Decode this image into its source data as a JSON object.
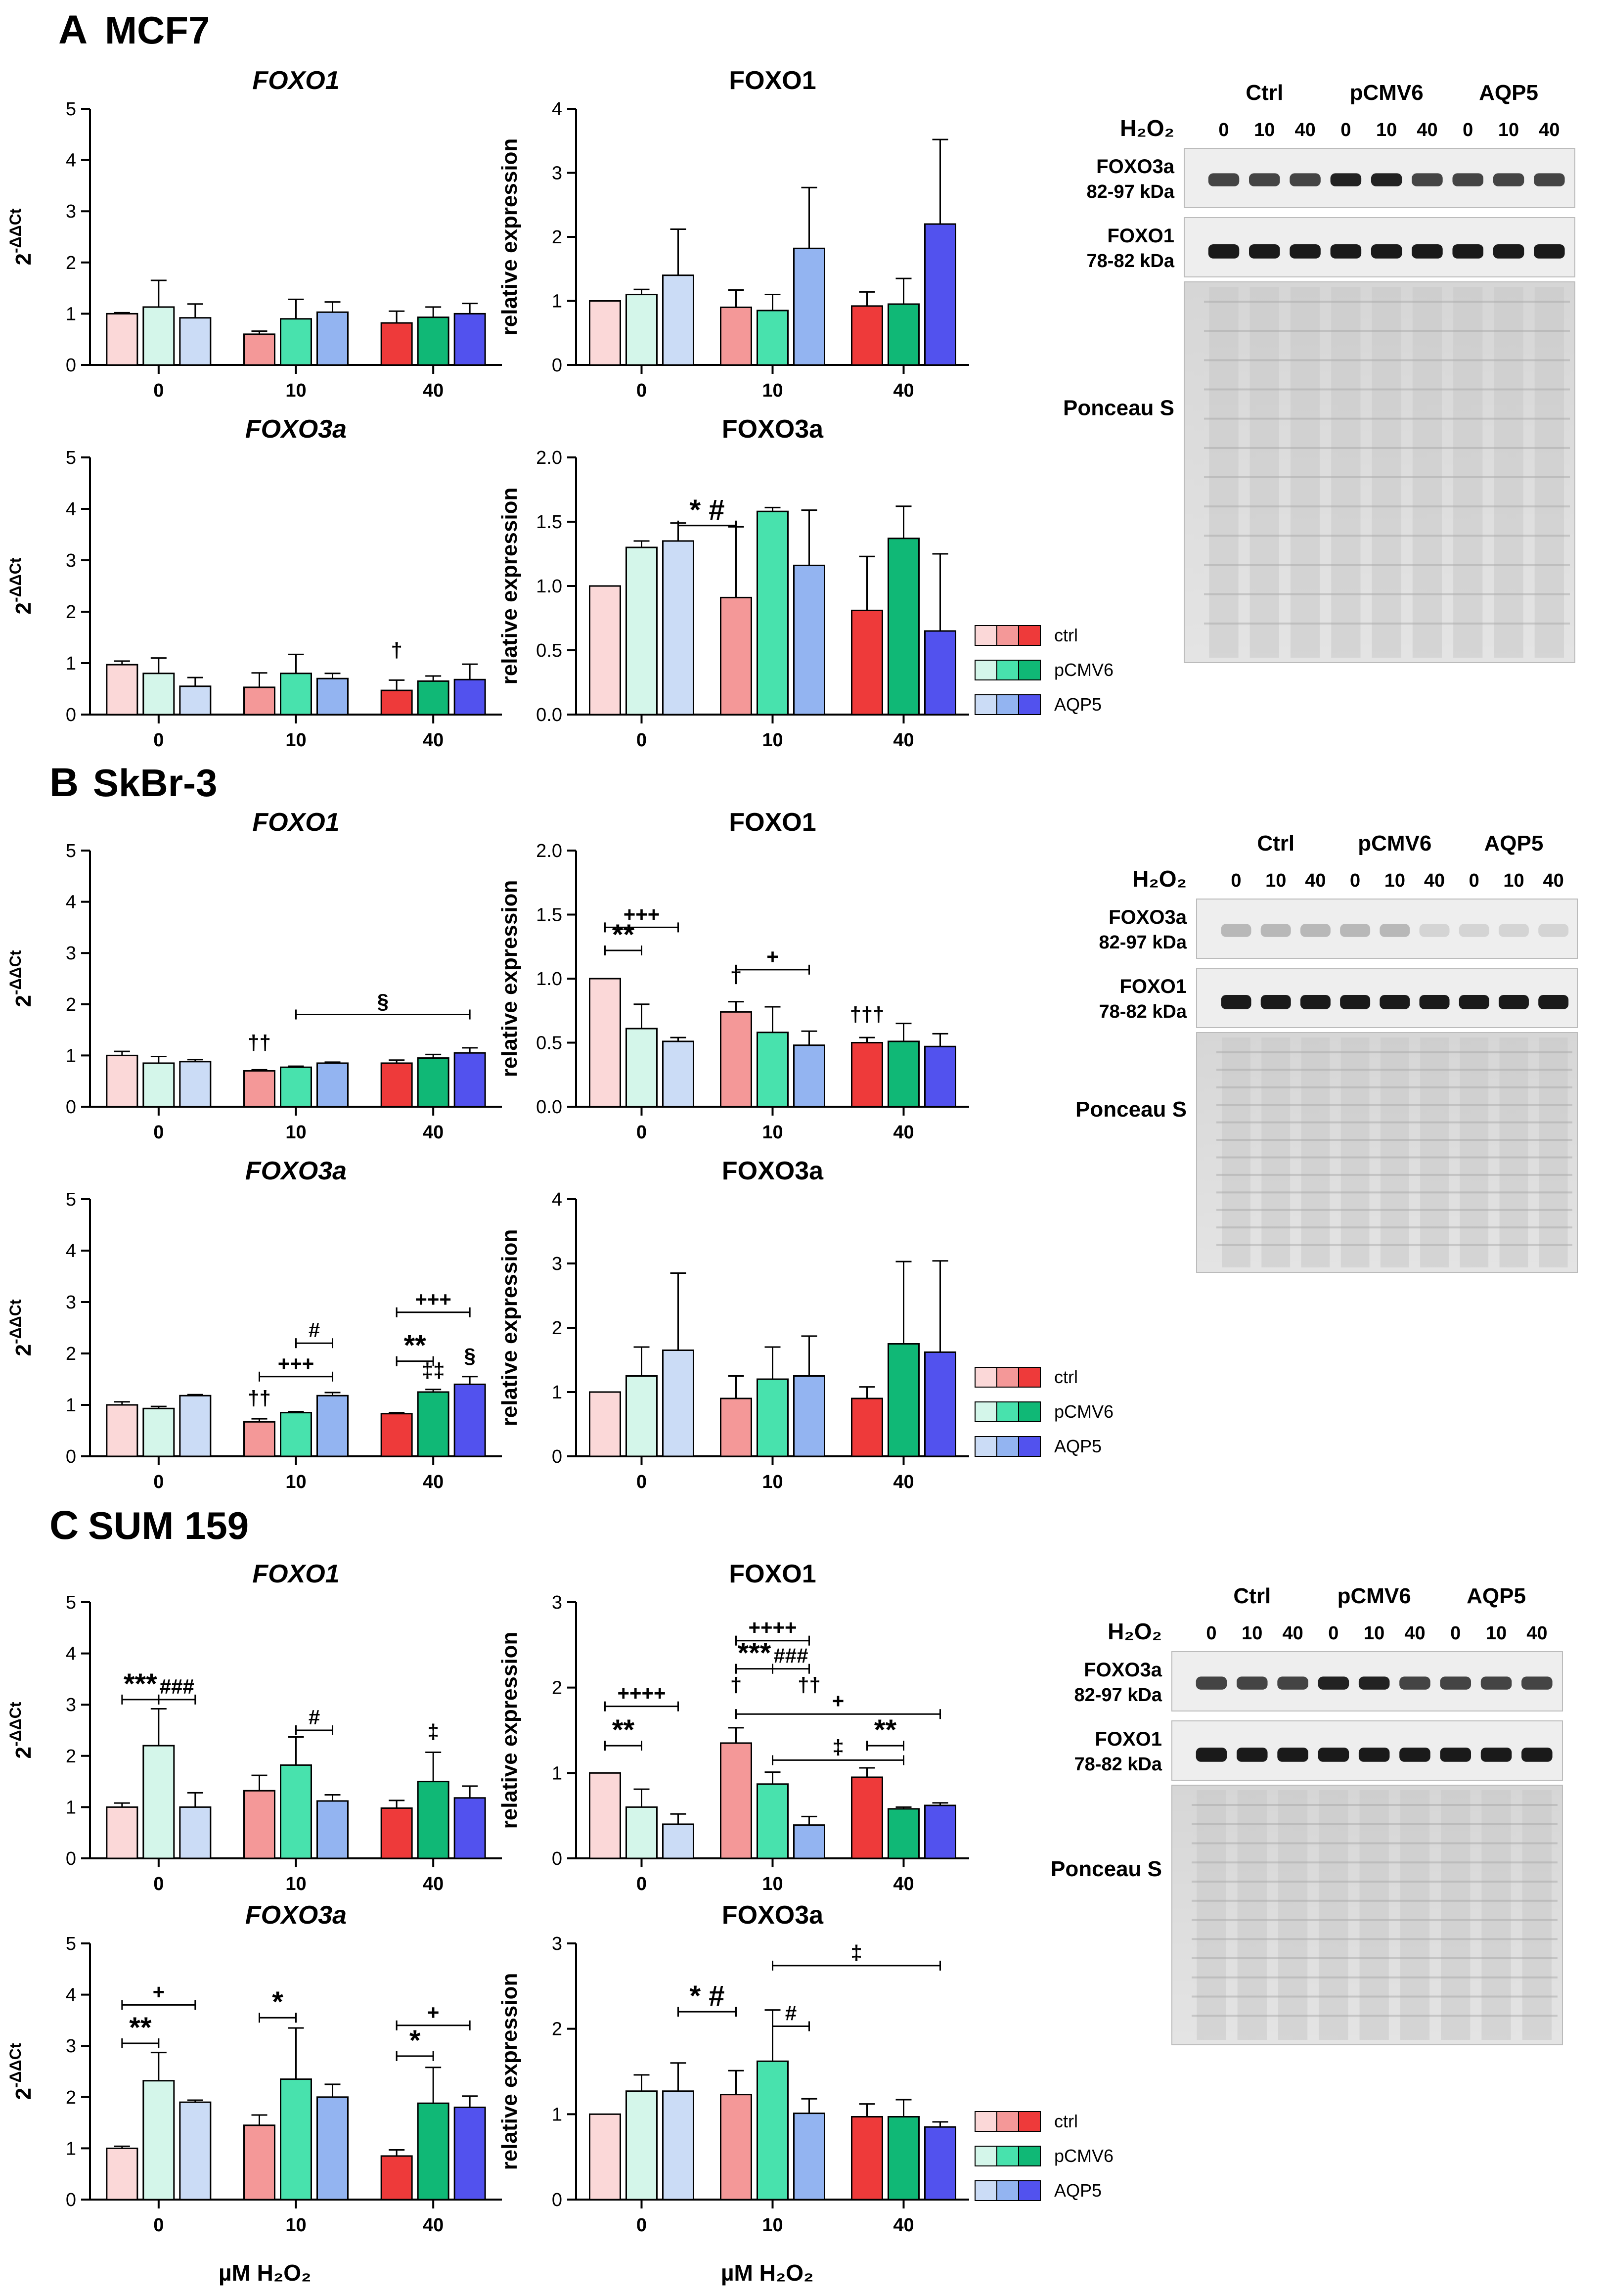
{
  "figure": {
    "x_axis_label": "µM H₂O₂",
    "legend": [
      {
        "name": "ctrl",
        "colors": [
          "#fbd8d8",
          "#f49898",
          "#ee3a3a"
        ]
      },
      {
        "name": "pCMV6",
        "colors": [
          "#d4f6ea",
          "#48e2ad",
          "#10b876"
        ]
      },
      {
        "name": "AQP5",
        "colors": [
          "#cbdcf6",
          "#93b4f1",
          "#5252ee"
        ]
      }
    ],
    "western": {
      "h2o2_label": "H₂O₂",
      "groups": [
        "Ctrl",
        "pCMV6",
        "AQP5"
      ],
      "lane_doses": [
        "0",
        "10",
        "40",
        "0",
        "10",
        "40",
        "0",
        "10",
        "40"
      ],
      "band1_name": "FOXO3a",
      "band1_kda": "82-97 kDa",
      "band2_name": "FOXO1",
      "band2_kda": "78-82 kDa",
      "stain": "Ponceau S"
    }
  },
  "panels": [
    {
      "letter": "A",
      "cell": "MCF7"
    },
    {
      "letter": "B",
      "cell": "SkBr-3"
    },
    {
      "letter": "C",
      "cell": "SUM 159"
    }
  ],
  "chart_data": [
    {
      "id": "A-mrna-foxo1",
      "type": "bar",
      "title": "FOXO1",
      "ylabel": "2-ΔΔCt",
      "ylim": [
        0,
        5
      ],
      "yticks": [
        0,
        1,
        2,
        3,
        4,
        5
      ],
      "categories": [
        "0",
        "10",
        "40"
      ],
      "series_names": [
        "ctrl",
        "pCMV6",
        "AQP5"
      ],
      "values": [
        [
          1.0,
          1.13,
          0.92
        ],
        [
          0.6,
          0.9,
          1.03
        ],
        [
          0.82,
          0.93,
          1.0
        ]
      ],
      "errors": [
        [
          0.02,
          0.52,
          0.27
        ],
        [
          0.06,
          0.38,
          0.2
        ],
        [
          0.23,
          0.2,
          0.2
        ]
      ],
      "annotations": []
    },
    {
      "id": "A-prot-foxo1",
      "type": "bar",
      "title": "FOXO1",
      "ylabel": "relative expression",
      "ylim": [
        0,
        4
      ],
      "yticks": [
        0,
        1,
        2,
        3,
        4
      ],
      "categories": [
        "0",
        "10",
        "40"
      ],
      "series_names": [
        "ctrl",
        "pCMV6",
        "AQP5"
      ],
      "values": [
        [
          1.0,
          1.1,
          1.4
        ],
        [
          0.9,
          0.85,
          1.82
        ],
        [
          0.92,
          0.95,
          2.2
        ]
      ],
      "errors": [
        [
          0.0,
          0.08,
          0.72
        ],
        [
          0.27,
          0.25,
          0.95
        ],
        [
          0.22,
          0.4,
          1.32
        ]
      ],
      "annotations": []
    },
    {
      "id": "A-mrna-foxo3a",
      "type": "bar",
      "title": "FOXO3a",
      "ylabel": "2-ΔΔCt",
      "ylim": [
        0,
        5
      ],
      "yticks": [
        0,
        1,
        2,
        3,
        4,
        5
      ],
      "categories": [
        "0",
        "10",
        "40"
      ],
      "series_names": [
        "ctrl",
        "pCMV6",
        "AQP5"
      ],
      "values": [
        [
          0.97,
          0.8,
          0.55
        ],
        [
          0.53,
          0.8,
          0.7
        ],
        [
          0.47,
          0.65,
          0.68
        ]
      ],
      "errors": [
        [
          0.07,
          0.3,
          0.17
        ],
        [
          0.28,
          0.37,
          0.1
        ],
        [
          0.2,
          0.1,
          0.3
        ]
      ],
      "annotations": [
        {
          "text": "†",
          "cat": 2,
          "bar": 0,
          "y": 1.0
        }
      ]
    },
    {
      "id": "A-prot-foxo3a",
      "type": "bar",
      "title": "FOXO3a",
      "ylabel": "relative expression",
      "ylim": [
        0,
        2.0
      ],
      "yticks": [
        0.0,
        0.5,
        1.0,
        1.5,
        2.0
      ],
      "categories": [
        "0",
        "10",
        "40"
      ],
      "series_names": [
        "ctrl",
        "pCMV6",
        "AQP5"
      ],
      "values": [
        [
          1.0,
          1.3,
          1.35
        ],
        [
          0.91,
          1.58,
          1.16
        ],
        [
          0.81,
          1.37,
          0.65
        ]
      ],
      "errors": [
        [
          0.0,
          0.05,
          0.14
        ],
        [
          0.55,
          0.03,
          0.43
        ],
        [
          0.42,
          0.25,
          0.6
        ]
      ],
      "annotations": [
        {
          "text": "* #",
          "bracket": [
            [
              0,
              2
            ],
            [
              1,
              0
            ]
          ],
          "y": 1.47
        }
      ]
    },
    {
      "id": "B-mrna-foxo1",
      "type": "bar",
      "title": "FOXO1",
      "ylabel": "2-ΔΔCt",
      "ylim": [
        0,
        5
      ],
      "yticks": [
        0,
        1,
        2,
        3,
        4,
        5
      ],
      "categories": [
        "0",
        "10",
        "40"
      ],
      "series_names": [
        "ctrl",
        "pCMV6",
        "AQP5"
      ],
      "values": [
        [
          1.0,
          0.85,
          0.88
        ],
        [
          0.7,
          0.77,
          0.85
        ],
        [
          0.85,
          0.95,
          1.05
        ]
      ],
      "errors": [
        [
          0.08,
          0.13,
          0.04
        ],
        [
          0.02,
          0.02,
          0.02
        ],
        [
          0.06,
          0.07,
          0.1
        ]
      ],
      "annotations": [
        {
          "text": "††",
          "cat": 1,
          "bar": 0,
          "y": 1.0
        },
        {
          "text": "§",
          "bracket": [
            [
              1,
              1
            ],
            [
              2,
              2
            ]
          ],
          "y": 1.8
        }
      ]
    },
    {
      "id": "B-prot-foxo1",
      "type": "bar",
      "title": "FOXO1",
      "ylabel": "relative expression",
      "ylim": [
        0,
        2.0
      ],
      "yticks": [
        0.0,
        0.5,
        1.0,
        1.5,
        2.0
      ],
      "categories": [
        "0",
        "10",
        "40"
      ],
      "series_names": [
        "ctrl",
        "pCMV6",
        "AQP5"
      ],
      "values": [
        [
          1.0,
          0.61,
          0.51
        ],
        [
          0.74,
          0.58,
          0.48
        ],
        [
          0.5,
          0.51,
          0.47
        ]
      ],
      "errors": [
        [
          0.0,
          0.19,
          0.03
        ],
        [
          0.08,
          0.2,
          0.11
        ],
        [
          0.04,
          0.14,
          0.1
        ]
      ],
      "annotations": [
        {
          "text": "+++",
          "bracket": [
            [
              0,
              0
            ],
            [
              0,
              2
            ]
          ],
          "y": 1.4
        },
        {
          "text": "**",
          "bracket": [
            [
              0,
              0
            ],
            [
              0,
              1
            ]
          ],
          "y": 1.22
        },
        {
          "text": "+",
          "bracket": [
            [
              1,
              0
            ],
            [
              1,
              2
            ]
          ],
          "y": 1.07
        },
        {
          "text": "†",
          "cat": 1,
          "bar": 0,
          "y": 0.92
        },
        {
          "text": "†††",
          "cat": 2,
          "bar": 0,
          "y": 0.62
        }
      ]
    },
    {
      "id": "B-mrna-foxo3a",
      "type": "bar",
      "title": "FOXO3a",
      "ylabel": "2-ΔΔCt",
      "ylim": [
        0,
        5
      ],
      "yticks": [
        0,
        1,
        2,
        3,
        4,
        5
      ],
      "categories": [
        "0",
        "10",
        "40"
      ],
      "series_names": [
        "ctrl",
        "pCMV6",
        "AQP5"
      ],
      "values": [
        [
          1.0,
          0.93,
          1.18
        ],
        [
          0.67,
          0.85,
          1.18
        ],
        [
          0.83,
          1.25,
          1.4
        ]
      ],
      "errors": [
        [
          0.06,
          0.04,
          0.02
        ],
        [
          0.06,
          0.02,
          0.06
        ],
        [
          0.02,
          0.05,
          0.15
        ]
      ],
      "annotations": [
        {
          "text": "††",
          "cat": 1,
          "bar": 0,
          "y": 0.88
        },
        {
          "text": "+++",
          "bracket": [
            [
              1,
              0
            ],
            [
              1,
              2
            ]
          ],
          "y": 1.55
        },
        {
          "text": "#",
          "bracket": [
            [
              1,
              1
            ],
            [
              1,
              2
            ]
          ],
          "y": 2.2
        },
        {
          "text": "**",
          "bracket": [
            [
              2,
              0
            ],
            [
              2,
              1
            ]
          ],
          "y": 1.85
        },
        {
          "text": "+++",
          "bracket": [
            [
              2,
              0
            ],
            [
              2,
              2
            ]
          ],
          "y": 2.8
        },
        {
          "text": "‡‡",
          "cat": 2,
          "bar": 1,
          "y": 1.42
        },
        {
          "text": "§",
          "cat": 2,
          "bar": 2,
          "y": 1.7
        }
      ]
    },
    {
      "id": "B-prot-foxo3a",
      "type": "bar",
      "title": "FOXO3a",
      "ylabel": "relative expression",
      "ylim": [
        0,
        4
      ],
      "yticks": [
        0,
        1,
        2,
        3,
        4
      ],
      "categories": [
        "0",
        "10",
        "40"
      ],
      "series_names": [
        "ctrl",
        "pCMV6",
        "AQP5"
      ],
      "values": [
        [
          1.0,
          1.25,
          1.65
        ],
        [
          0.9,
          1.2,
          1.25
        ],
        [
          0.9,
          1.75,
          1.62
        ]
      ],
      "errors": [
        [
          0.0,
          0.45,
          1.2
        ],
        [
          0.35,
          0.5,
          0.62
        ],
        [
          0.18,
          1.28,
          1.42
        ]
      ],
      "annotations": []
    },
    {
      "id": "C-mrna-foxo1",
      "type": "bar",
      "title": "FOXO1",
      "ylabel": "2-ΔΔCt",
      "ylim": [
        0,
        5
      ],
      "yticks": [
        0,
        1,
        2,
        3,
        4,
        5
      ],
      "categories": [
        "0",
        "10",
        "40"
      ],
      "series_names": [
        "ctrl",
        "pCMV6",
        "AQP5"
      ],
      "values": [
        [
          1.0,
          2.2,
          1.0
        ],
        [
          1.32,
          1.82,
          1.12
        ],
        [
          0.98,
          1.5,
          1.18
        ]
      ],
      "errors": [
        [
          0.08,
          0.72,
          0.28
        ],
        [
          0.3,
          0.55,
          0.12
        ],
        [
          0.15,
          0.57,
          0.23
        ]
      ],
      "annotations": [
        {
          "text": "***",
          "bracket": [
            [
              0,
              0
            ],
            [
              0,
              1
            ]
          ],
          "y": 3.1
        },
        {
          "text": "###",
          "bracket": [
            [
              0,
              1
            ],
            [
              0,
              2
            ]
          ],
          "y": 3.1
        },
        {
          "text": "#",
          "bracket": [
            [
              1,
              1
            ],
            [
              1,
              2
            ]
          ],
          "y": 2.5
        },
        {
          "text": "‡",
          "cat": 2,
          "bar": 1,
          "y": 2.22
        }
      ]
    },
    {
      "id": "C-prot-foxo1",
      "type": "bar",
      "title": "FOXO1",
      "ylabel": "relative expression",
      "ylim": [
        0,
        3
      ],
      "yticks": [
        0,
        1,
        2,
        3
      ],
      "categories": [
        "0",
        "10",
        "40"
      ],
      "series_names": [
        "ctrl",
        "pCMV6",
        "AQP5"
      ],
      "values": [
        [
          1.0,
          0.6,
          0.4
        ],
        [
          1.35,
          0.87,
          0.39
        ],
        [
          0.95,
          0.58,
          0.62
        ]
      ],
      "errors": [
        [
          0.0,
          0.21,
          0.12
        ],
        [
          0.18,
          0.14,
          0.1
        ],
        [
          0.11,
          0.02,
          0.03
        ]
      ],
      "annotations": [
        {
          "text": "++++",
          "bracket": [
            [
              0,
              0
            ],
            [
              0,
              2
            ]
          ],
          "y": 1.78
        },
        {
          "text": "**",
          "bracket": [
            [
              0,
              0
            ],
            [
              0,
              1
            ]
          ],
          "y": 1.32
        },
        {
          "text": "++++",
          "bracket": [
            [
              1,
              0
            ],
            [
              1,
              2
            ]
          ],
          "y": 2.55
        },
        {
          "text": "***",
          "bracket": [
            [
              1,
              0
            ],
            [
              1,
              1
            ]
          ],
          "y": 2.22
        },
        {
          "text": "###",
          "bracket": [
            [
              1,
              1
            ],
            [
              1,
              2
            ]
          ],
          "y": 2.22
        },
        {
          "text": "†",
          "cat": 1,
          "bar": 0,
          "y": 1.88
        },
        {
          "text": "††",
          "cat": 1,
          "bar": 2,
          "y": 1.88
        },
        {
          "text": "+",
          "bracket": [
            [
              1,
              0
            ],
            [
              2,
              2
            ]
          ],
          "y": 1.69
        },
        {
          "text": "‡",
          "bracket": [
            [
              1,
              1
            ],
            [
              2,
              1
            ]
          ],
          "y": 1.15
        },
        {
          "text": "**",
          "bracket": [
            [
              2,
              0
            ],
            [
              2,
              1
            ]
          ],
          "y": 1.32
        }
      ]
    },
    {
      "id": "C-mrna-foxo3a",
      "type": "bar",
      "title": "FOXO3a",
      "ylabel": "2-ΔΔCt",
      "ylim": [
        0,
        5
      ],
      "yticks": [
        0,
        1,
        2,
        3,
        4,
        5
      ],
      "categories": [
        "0",
        "10",
        "40"
      ],
      "series_names": [
        "ctrl",
        "pCMV6",
        "AQP5"
      ],
      "values": [
        [
          1.0,
          2.32,
          1.9
        ],
        [
          1.45,
          2.35,
          2.0
        ],
        [
          0.85,
          1.88,
          1.8
        ]
      ],
      "errors": [
        [
          0.04,
          0.55,
          0.04
        ],
        [
          0.2,
          1.0,
          0.25
        ],
        [
          0.12,
          0.7,
          0.22
        ]
      ],
      "annotations": [
        {
          "text": "+",
          "bracket": [
            [
              0,
              0
            ],
            [
              0,
              2
            ]
          ],
          "y": 3.8
        },
        {
          "text": "**",
          "bracket": [
            [
              0,
              0
            ],
            [
              0,
              1
            ]
          ],
          "y": 3.05
        },
        {
          "text": "*",
          "bracket": [
            [
              1,
              0
            ],
            [
              1,
              1
            ]
          ],
          "y": 3.55
        },
        {
          "text": "+",
          "bracket": [
            [
              2,
              0
            ],
            [
              2,
              2
            ]
          ],
          "y": 3.4
        },
        {
          "text": "*",
          "bracket": [
            [
              2,
              0
            ],
            [
              2,
              1
            ]
          ],
          "y": 2.8
        }
      ]
    },
    {
      "id": "C-prot-foxo3a",
      "type": "bar",
      "title": "FOXO3a",
      "ylabel": "relative expression",
      "ylim": [
        0,
        3
      ],
      "yticks": [
        0,
        1,
        2,
        3
      ],
      "categories": [
        "0",
        "10",
        "40"
      ],
      "series_names": [
        "ctrl",
        "pCMV6",
        "AQP5"
      ],
      "values": [
        [
          1.0,
          1.27,
          1.27
        ],
        [
          1.23,
          1.62,
          1.01
        ],
        [
          0.97,
          0.97,
          0.85
        ]
      ],
      "errors": [
        [
          0.0,
          0.19,
          0.33
        ],
        [
          0.28,
          0.6,
          0.17
        ],
        [
          0.15,
          0.2,
          0.06
        ]
      ],
      "annotations": [
        {
          "text": "* #",
          "bracket": [
            [
              0,
              2
            ],
            [
              1,
              0
            ]
          ],
          "y": 2.2
        },
        {
          "text": "#",
          "bracket": [
            [
              1,
              1
            ],
            [
              1,
              2
            ]
          ],
          "y": 2.03
        },
        {
          "text": "‡",
          "bracket": [
            [
              1,
              1
            ],
            [
              2,
              2
            ]
          ],
          "y": 2.74
        }
      ]
    }
  ]
}
